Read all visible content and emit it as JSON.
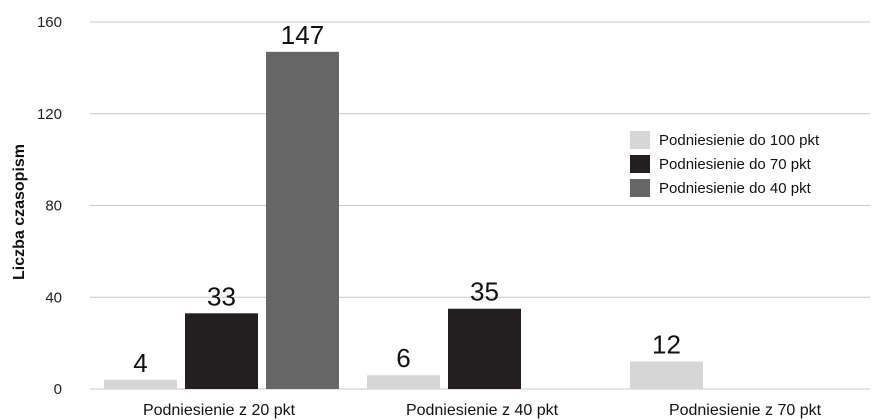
{
  "chart_data": {
    "type": "bar",
    "title": "",
    "xlabel": "",
    "ylabel": "Liczba czasopism",
    "ylim": [
      0,
      160
    ],
    "yticks": [
      0,
      40,
      80,
      120,
      160
    ],
    "grid": true,
    "legend_position": "right",
    "categories": [
      "Podniesienie  z 20 pkt",
      "Podniesienie z 40 pkt",
      "Podniesienie z 70 pkt"
    ],
    "series": [
      {
        "name": "Podniesienie do 100 pkt",
        "color": "#d6d6d6",
        "values": [
          4,
          6,
          12
        ]
      },
      {
        "name": "Podniesienie do 70 pkt",
        "color": "#231f20",
        "values": [
          33,
          35,
          null
        ]
      },
      {
        "name": "Podniesienie do 40 pkt",
        "color": "#666666",
        "values": [
          147,
          null,
          null
        ]
      }
    ]
  }
}
